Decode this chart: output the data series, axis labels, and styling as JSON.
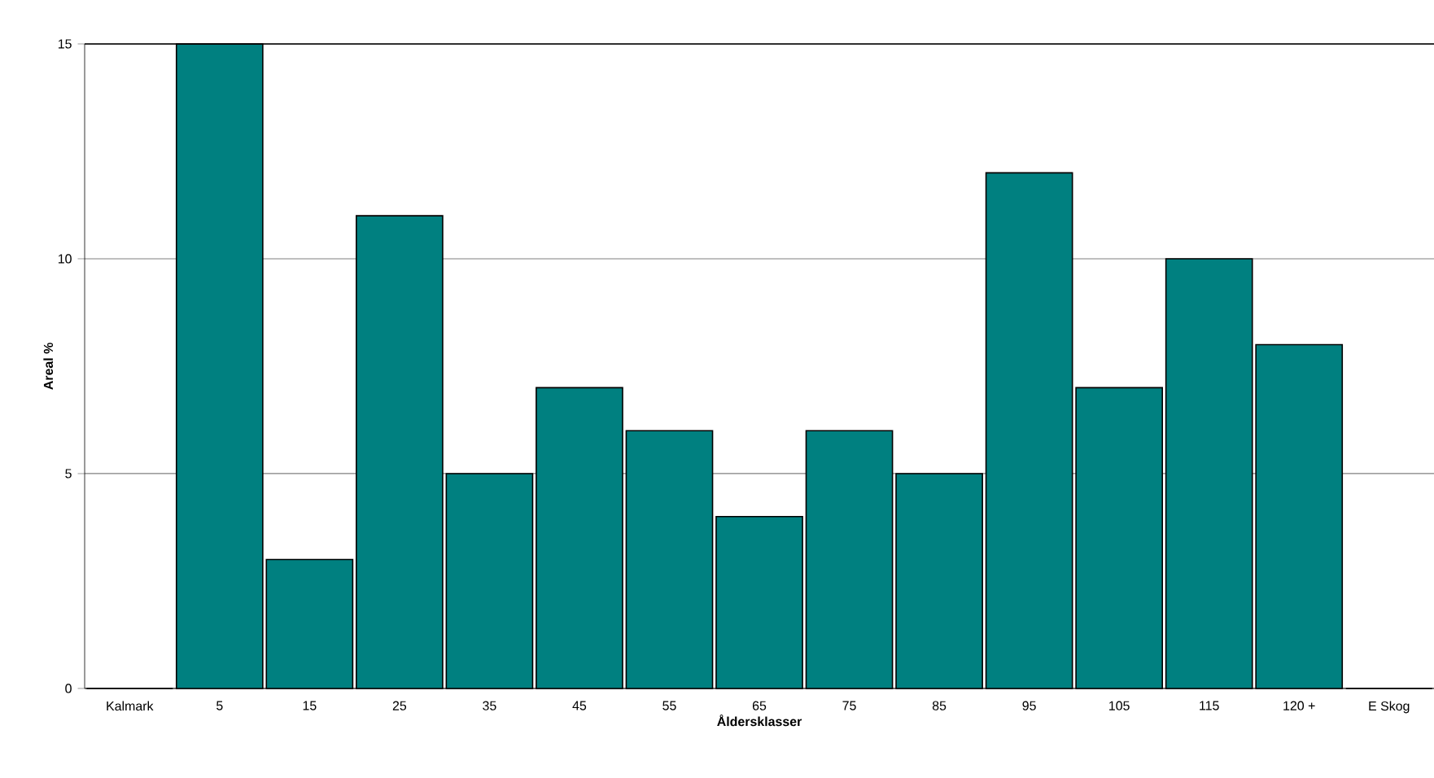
{
  "chart_data": {
    "type": "bar",
    "xlabel": "Åldersklasser",
    "ylabel": "Areal %",
    "categories": [
      "Kalmark",
      "5",
      "15",
      "25",
      "35",
      "45",
      "55",
      "65",
      "75",
      "85",
      "95",
      "105",
      "115",
      "120 +",
      "E Skog"
    ],
    "values": [
      0,
      15,
      3,
      11,
      5,
      7,
      6,
      4,
      6,
      5,
      12,
      7,
      10,
      8,
      0
    ],
    "color": "#008080",
    "ylim": [
      0,
      15
    ],
    "yticks": [
      0,
      5,
      10,
      15
    ],
    "grid": "y"
  }
}
